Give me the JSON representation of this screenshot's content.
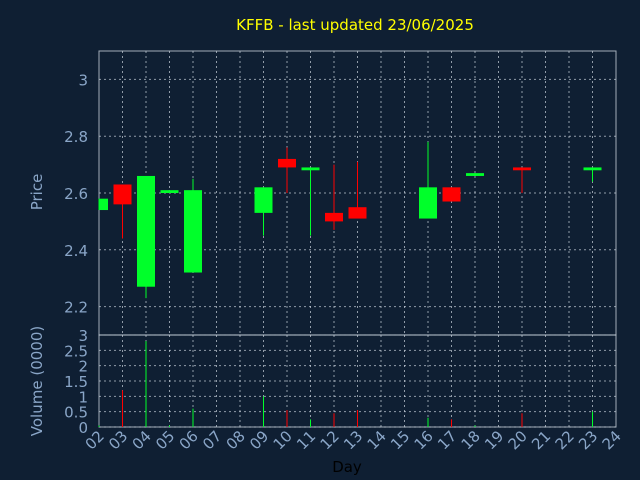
{
  "chart_data": [
    {
      "type": "candlestick",
      "title": "KFFB - last updated 23/06/2025",
      "ylabel": "Price",
      "ylim": [
        2.1,
        3.1
      ],
      "yticks": [
        "2.2",
        "2.4",
        "2.6",
        "2.8",
        "3"
      ],
      "grid": true,
      "colors": {
        "up": "#00ff2a",
        "down": "#ff0000",
        "background": "#0f1f33",
        "title": "#ffff00",
        "axis_text": "#8aa6c8"
      },
      "candles": [
        {
          "day": "02",
          "open": 2.54,
          "high": 2.58,
          "low": 2.54,
          "close": 2.58
        },
        {
          "day": "03",
          "open": 2.63,
          "high": 2.63,
          "low": 2.44,
          "close": 2.56
        },
        {
          "day": "04",
          "open": 2.27,
          "high": 2.66,
          "low": 2.23,
          "close": 2.66
        },
        {
          "day": "05",
          "open": 2.6,
          "high": 2.61,
          "low": 2.6,
          "close": 2.61
        },
        {
          "day": "06",
          "open": 2.32,
          "high": 2.65,
          "low": 2.32,
          "close": 2.61
        },
        {
          "day": "09",
          "open": 2.53,
          "high": 2.62,
          "low": 2.45,
          "close": 2.62
        },
        {
          "day": "10",
          "open": 2.72,
          "high": 2.76,
          "low": 2.6,
          "close": 2.69
        },
        {
          "day": "11",
          "open": 2.68,
          "high": 2.69,
          "low": 2.45,
          "close": 2.69
        },
        {
          "day": "12",
          "open": 2.53,
          "high": 2.7,
          "low": 2.47,
          "close": 2.5
        },
        {
          "day": "13",
          "open": 2.55,
          "high": 2.71,
          "low": 2.51,
          "close": 2.51
        },
        {
          "day": "16",
          "open": 2.51,
          "high": 2.78,
          "low": 2.51,
          "close": 2.62
        },
        {
          "day": "17",
          "open": 2.62,
          "high": 2.62,
          "low": 2.57,
          "close": 2.57
        },
        {
          "day": "18",
          "open": 2.66,
          "high": 2.67,
          "low": 2.66,
          "close": 2.67
        },
        {
          "day": "20",
          "open": 2.69,
          "high": 2.69,
          "low": 2.6,
          "close": 2.68
        },
        {
          "day": "23",
          "open": 2.68,
          "high": 2.69,
          "low": 2.64,
          "close": 2.69
        }
      ]
    },
    {
      "type": "bar",
      "ylabel": "Volume (0000)",
      "xlabel": "Day",
      "ylim": [
        0,
        3
      ],
      "yticks": [
        "0",
        "0.5",
        "1",
        "1.5",
        "2",
        "2.5",
        "3"
      ],
      "grid": true,
      "x_tick_labels": [
        "02",
        "03",
        "04",
        "05",
        "06",
        "07",
        "08",
        "09",
        "10",
        "11",
        "12",
        "13",
        "14",
        "15",
        "16",
        "17",
        "18",
        "19",
        "20",
        "21",
        "22",
        "23",
        "24"
      ],
      "bars": [
        {
          "day": "02",
          "value": 0.05,
          "dir": "up"
        },
        {
          "day": "03",
          "value": 1.2,
          "dir": "down"
        },
        {
          "day": "04",
          "value": 2.8,
          "dir": "up"
        },
        {
          "day": "05",
          "value": 0.05,
          "dir": "up"
        },
        {
          "day": "06",
          "value": 0.6,
          "dir": "up"
        },
        {
          "day": "09",
          "value": 1.0,
          "dir": "up"
        },
        {
          "day": "10",
          "value": 0.55,
          "dir": "down"
        },
        {
          "day": "11",
          "value": 0.25,
          "dir": "up"
        },
        {
          "day": "12",
          "value": 0.45,
          "dir": "down"
        },
        {
          "day": "13",
          "value": 0.55,
          "dir": "down"
        },
        {
          "day": "16",
          "value": 0.3,
          "dir": "up"
        },
        {
          "day": "17",
          "value": 0.25,
          "dir": "down"
        },
        {
          "day": "18",
          "value": 0.05,
          "dir": "up"
        },
        {
          "day": "20",
          "value": 0.45,
          "dir": "down"
        },
        {
          "day": "23",
          "value": 0.5,
          "dir": "up"
        }
      ]
    }
  ]
}
